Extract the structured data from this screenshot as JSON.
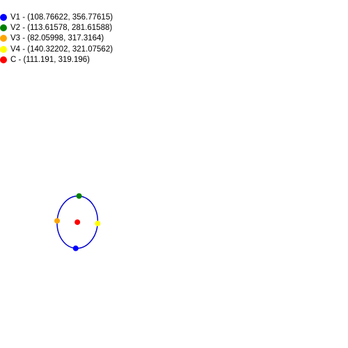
{
  "legend": [
    {
      "label": "V1 - (108.76622, 356.77615)",
      "color": "#0000ff"
    },
    {
      "label": "V2 - (113.61578, 281.61588)",
      "color": "#008000"
    },
    {
      "label": "V3 - (82.05998, 317.3164)",
      "color": "#ffa500"
    },
    {
      "label": "V4 - (140.32202, 321.07562)",
      "color": "#ffff00"
    },
    {
      "label": "C - (111.191, 319.196)",
      "color": "#ff0000"
    }
  ],
  "ellipse": {
    "stroke": "#0000cc"
  },
  "points": [
    {
      "id": "V1",
      "x": 108.76622,
      "y": 356.77615,
      "color": "#0000ff"
    },
    {
      "id": "V2",
      "x": 113.61578,
      "y": 281.61588,
      "color": "#008000"
    },
    {
      "id": "V3",
      "x": 82.05998,
      "y": 317.3164,
      "color": "#ffa500"
    },
    {
      "id": "V4",
      "x": 140.32202,
      "y": 321.07562,
      "color": "#ffff00"
    },
    {
      "id": "C",
      "x": 111.191,
      "y": 319.196,
      "color": "#ff0000"
    }
  ]
}
